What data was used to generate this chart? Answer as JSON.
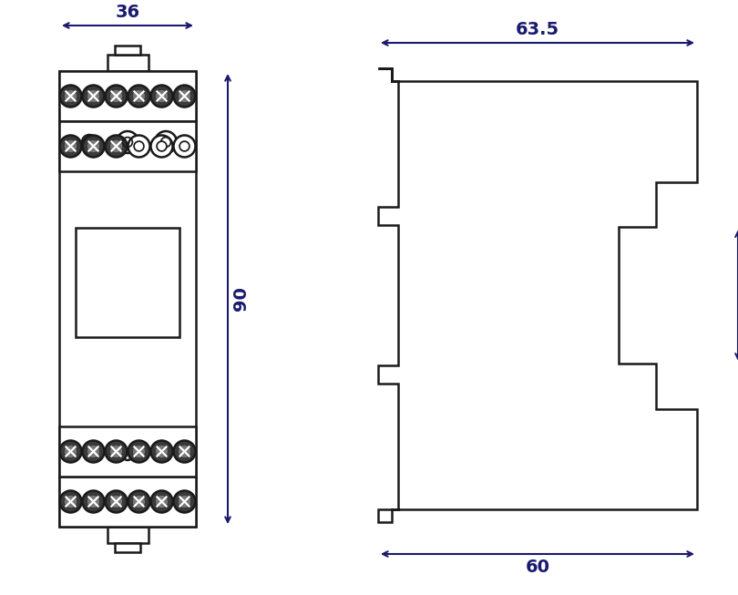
{
  "bg_color": "#ffffff",
  "line_color": "#1a1a1a",
  "dim_color": "#1a1a6e",
  "lw": 1.8,
  "fig_width": 8.1,
  "fig_height": 6.53,
  "dpi": 100
}
